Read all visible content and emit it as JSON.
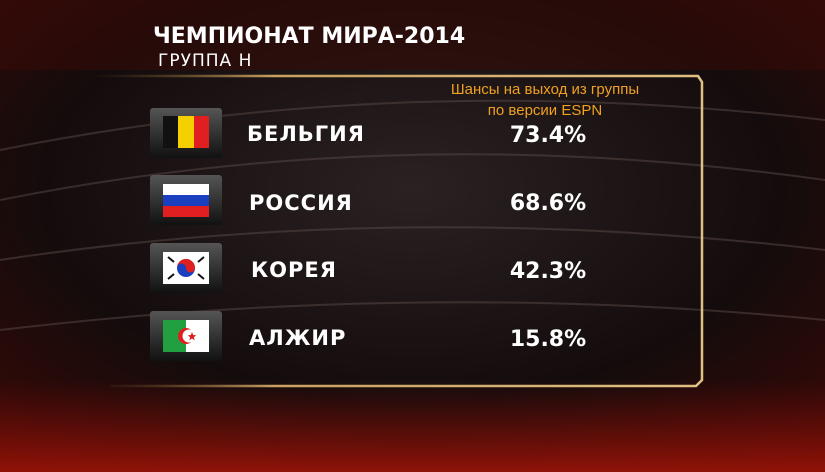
{
  "header": {
    "title": "ЧЕМПИОНАТ МИРА-2014",
    "subtitle": "ГРУППА H"
  },
  "table": {
    "column_header": [
      "Шансы на выход из группы",
      "по версии ESPN"
    ],
    "rows": [
      [
        "БЕЛЬГИЯ",
        "73.4%"
      ],
      [
        "РОССИЯ",
        "68.6%"
      ],
      [
        "КОРЕЯ",
        "42.3%"
      ],
      [
        "АЛЖИР",
        "15.8%"
      ]
    ]
  }
}
